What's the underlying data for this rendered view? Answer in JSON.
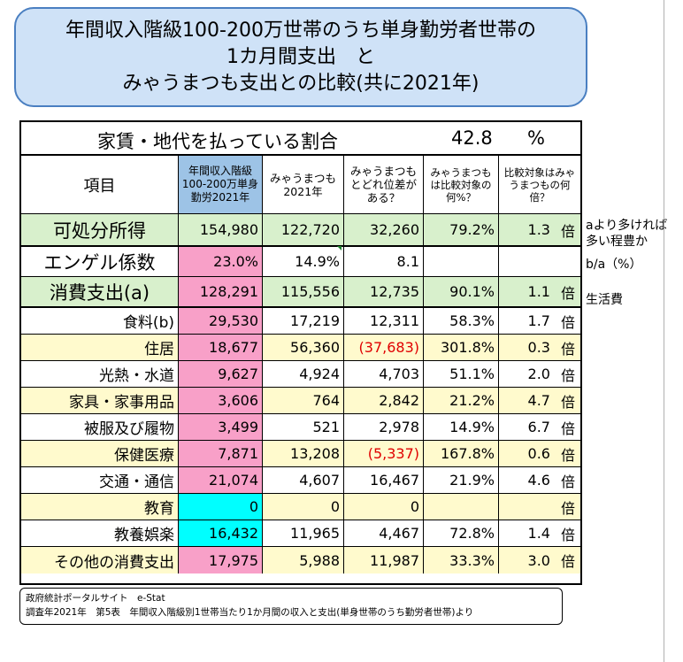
{
  "title": {
    "line1": "年間収入階級100-200万世帯のうち単身勤労者世帯の",
    "line2": "1カ月間支出　と",
    "line3": "みゃうまつも支出との比較(共に2021年)"
  },
  "ratio": {
    "label": "家賃・地代を払っている割合",
    "value": "42.8",
    "unit": "%"
  },
  "headers": {
    "item": "項目",
    "group": "年間収入階級100-200万単身勤労2021年",
    "myau": "みゃうまつも2021年",
    "diff": "みゃうまつもとどれ位差がある？",
    "ratio": "みゃうまつもは比較対象の何%？",
    "times": "比較対象はみゃうまつもの何倍？"
  },
  "rows": {
    "income": {
      "label": "可処分所得",
      "group": "154,980",
      "myau": "122,720",
      "diff": "32,260",
      "ratio": "79.2%",
      "times": "1.3",
      "unit": "倍"
    },
    "engel": {
      "label": "エンゲル係数",
      "group": "23.0%",
      "myau": "14.9%",
      "diff": "8.1",
      "ratio": "",
      "times": "",
      "unit": ""
    },
    "consume": {
      "label": "消費支出(a)",
      "group": "128,291",
      "myau": "115,556",
      "diff": "12,735",
      "ratio": "90.1%",
      "times": "1.1",
      "unit": "倍"
    }
  },
  "items": [
    {
      "label": "食料(b)",
      "group": "29,530",
      "myau": "17,219",
      "diff": "12,311",
      "ratio": "58.3%",
      "times": "1.7",
      "unit": "倍"
    },
    {
      "label": "住居",
      "group": "18,677",
      "myau": "56,360",
      "diff": "(37,683)",
      "ratio": "301.8%",
      "times": "0.3",
      "unit": "倍"
    },
    {
      "label": "光熱・水道",
      "group": "9,627",
      "myau": "4,924",
      "diff": "4,703",
      "ratio": "51.1%",
      "times": "2.0",
      "unit": "倍"
    },
    {
      "label": "家具・家事用品",
      "group": "3,606",
      "myau": "764",
      "diff": "2,842",
      "ratio": "21.2%",
      "times": "4.7",
      "unit": "倍"
    },
    {
      "label": "被服及び履物",
      "group": "3,499",
      "myau": "521",
      "diff": "2,978",
      "ratio": "14.9%",
      "times": "6.7",
      "unit": "倍"
    },
    {
      "label": "保健医療",
      "group": "7,871",
      "myau": "13,208",
      "diff": "(5,337)",
      "ratio": "167.8%",
      "times": "0.6",
      "unit": "倍"
    },
    {
      "label": "交通・通信",
      "group": "21,074",
      "myau": "4,607",
      "diff": "16,467",
      "ratio": "21.9%",
      "times": "4.6",
      "unit": "倍"
    },
    {
      "label": "教育",
      "group": "0",
      "myau": "0",
      "diff": "0",
      "ratio": "",
      "times": "",
      "unit": "倍"
    },
    {
      "label": "教養娯楽",
      "group": "16,432",
      "myau": "11,965",
      "diff": "4,467",
      "ratio": "72.8%",
      "times": "1.4",
      "unit": "倍"
    },
    {
      "label": "その他の消費支出",
      "group": "17,975",
      "myau": "5,988",
      "diff": "11,987",
      "ratio": "33.3%",
      "times": "3.0",
      "unit": "倍"
    }
  ],
  "notes": {
    "income_1": "aより多ければ",
    "income_2": "多い程豊か",
    "engel": "b/a（%）",
    "consume": "生活費"
  },
  "source": {
    "line1": "政府統計ポータルサイト　e-Stat",
    "line2": "調査年2021年　第5表　年間収入階級別1世帯当たり1か月間の収入と支出(単身世帯のうち勤労者世帯)より"
  },
  "colors": {
    "title_bg": "#cfe2f7",
    "header_blue": "#9dc3e6",
    "green": "#d8f0cc",
    "yellow": "#fffacd",
    "pink": "#f8a0c8",
    "cyan": "#00ffff",
    "negative": "#e00000"
  }
}
